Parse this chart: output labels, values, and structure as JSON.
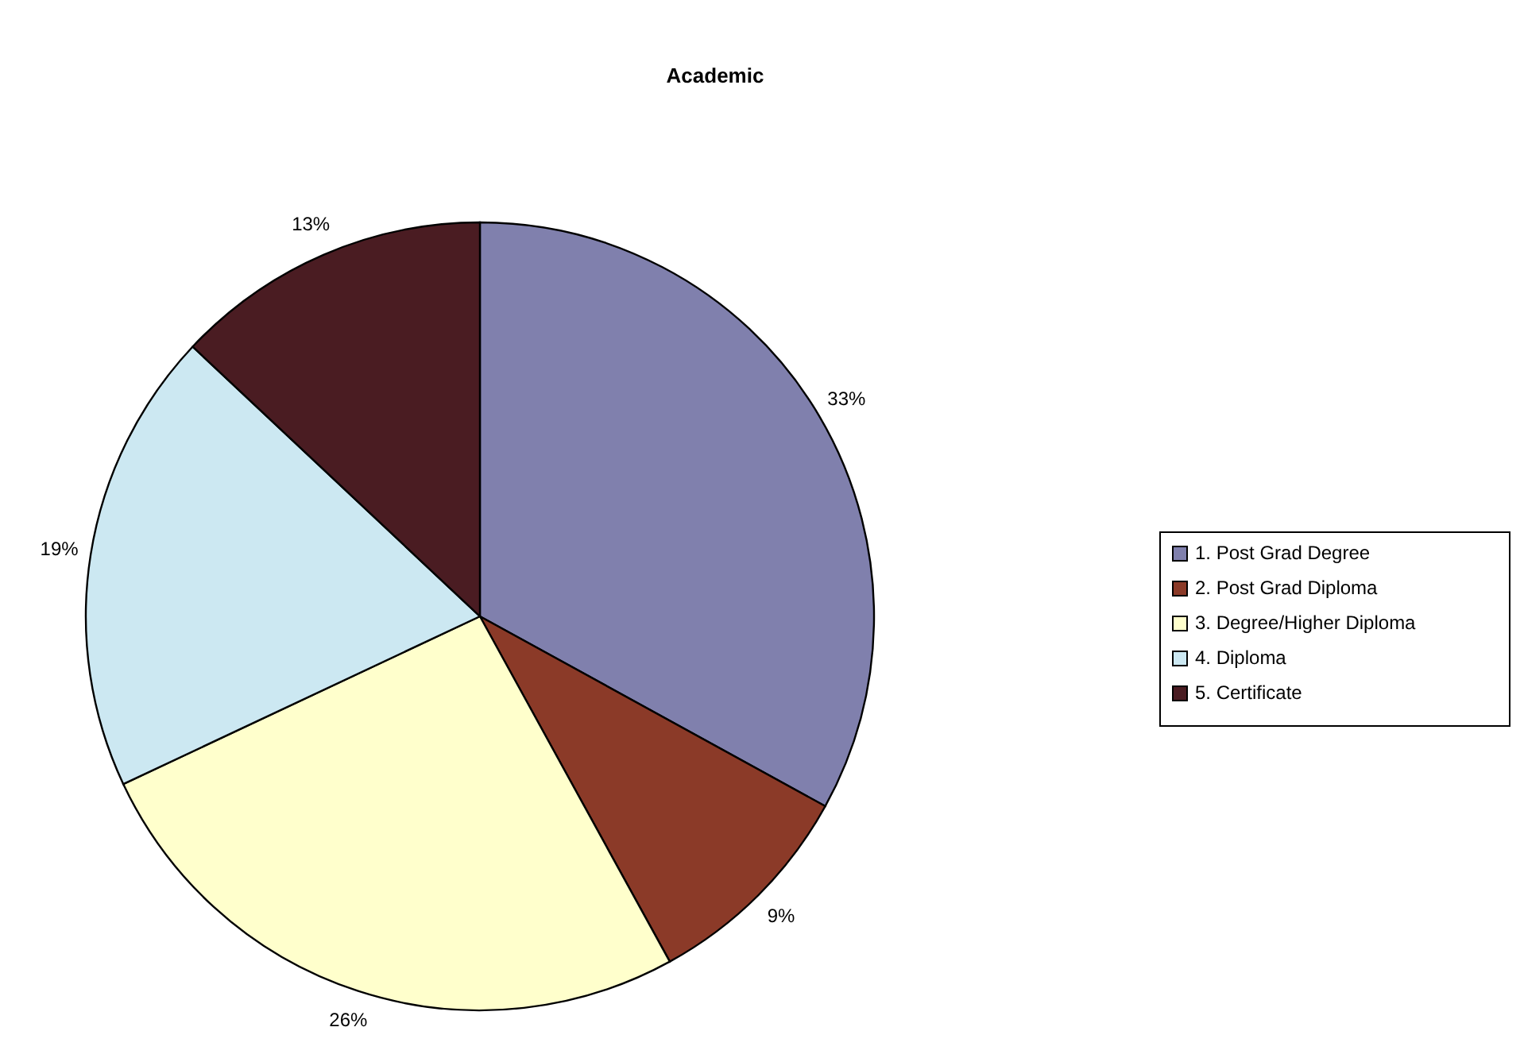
{
  "chart_data": {
    "type": "pie",
    "title": "Academic",
    "categories": [
      "1. Post Grad Degree",
      "2. Post Grad Diploma",
      "3. Degree/Higher Diploma",
      "4. Diploma",
      "5. Certificate"
    ],
    "values": [
      33,
      9,
      26,
      19,
      13
    ],
    "colors": [
      "#8080ad",
      "#8b3a28",
      "#ffffcc",
      "#cce8f2",
      "#4a1c22"
    ],
    "value_labels": [
      "33%",
      "9%",
      "26%",
      "19%",
      "13%"
    ],
    "legend": "right"
  }
}
